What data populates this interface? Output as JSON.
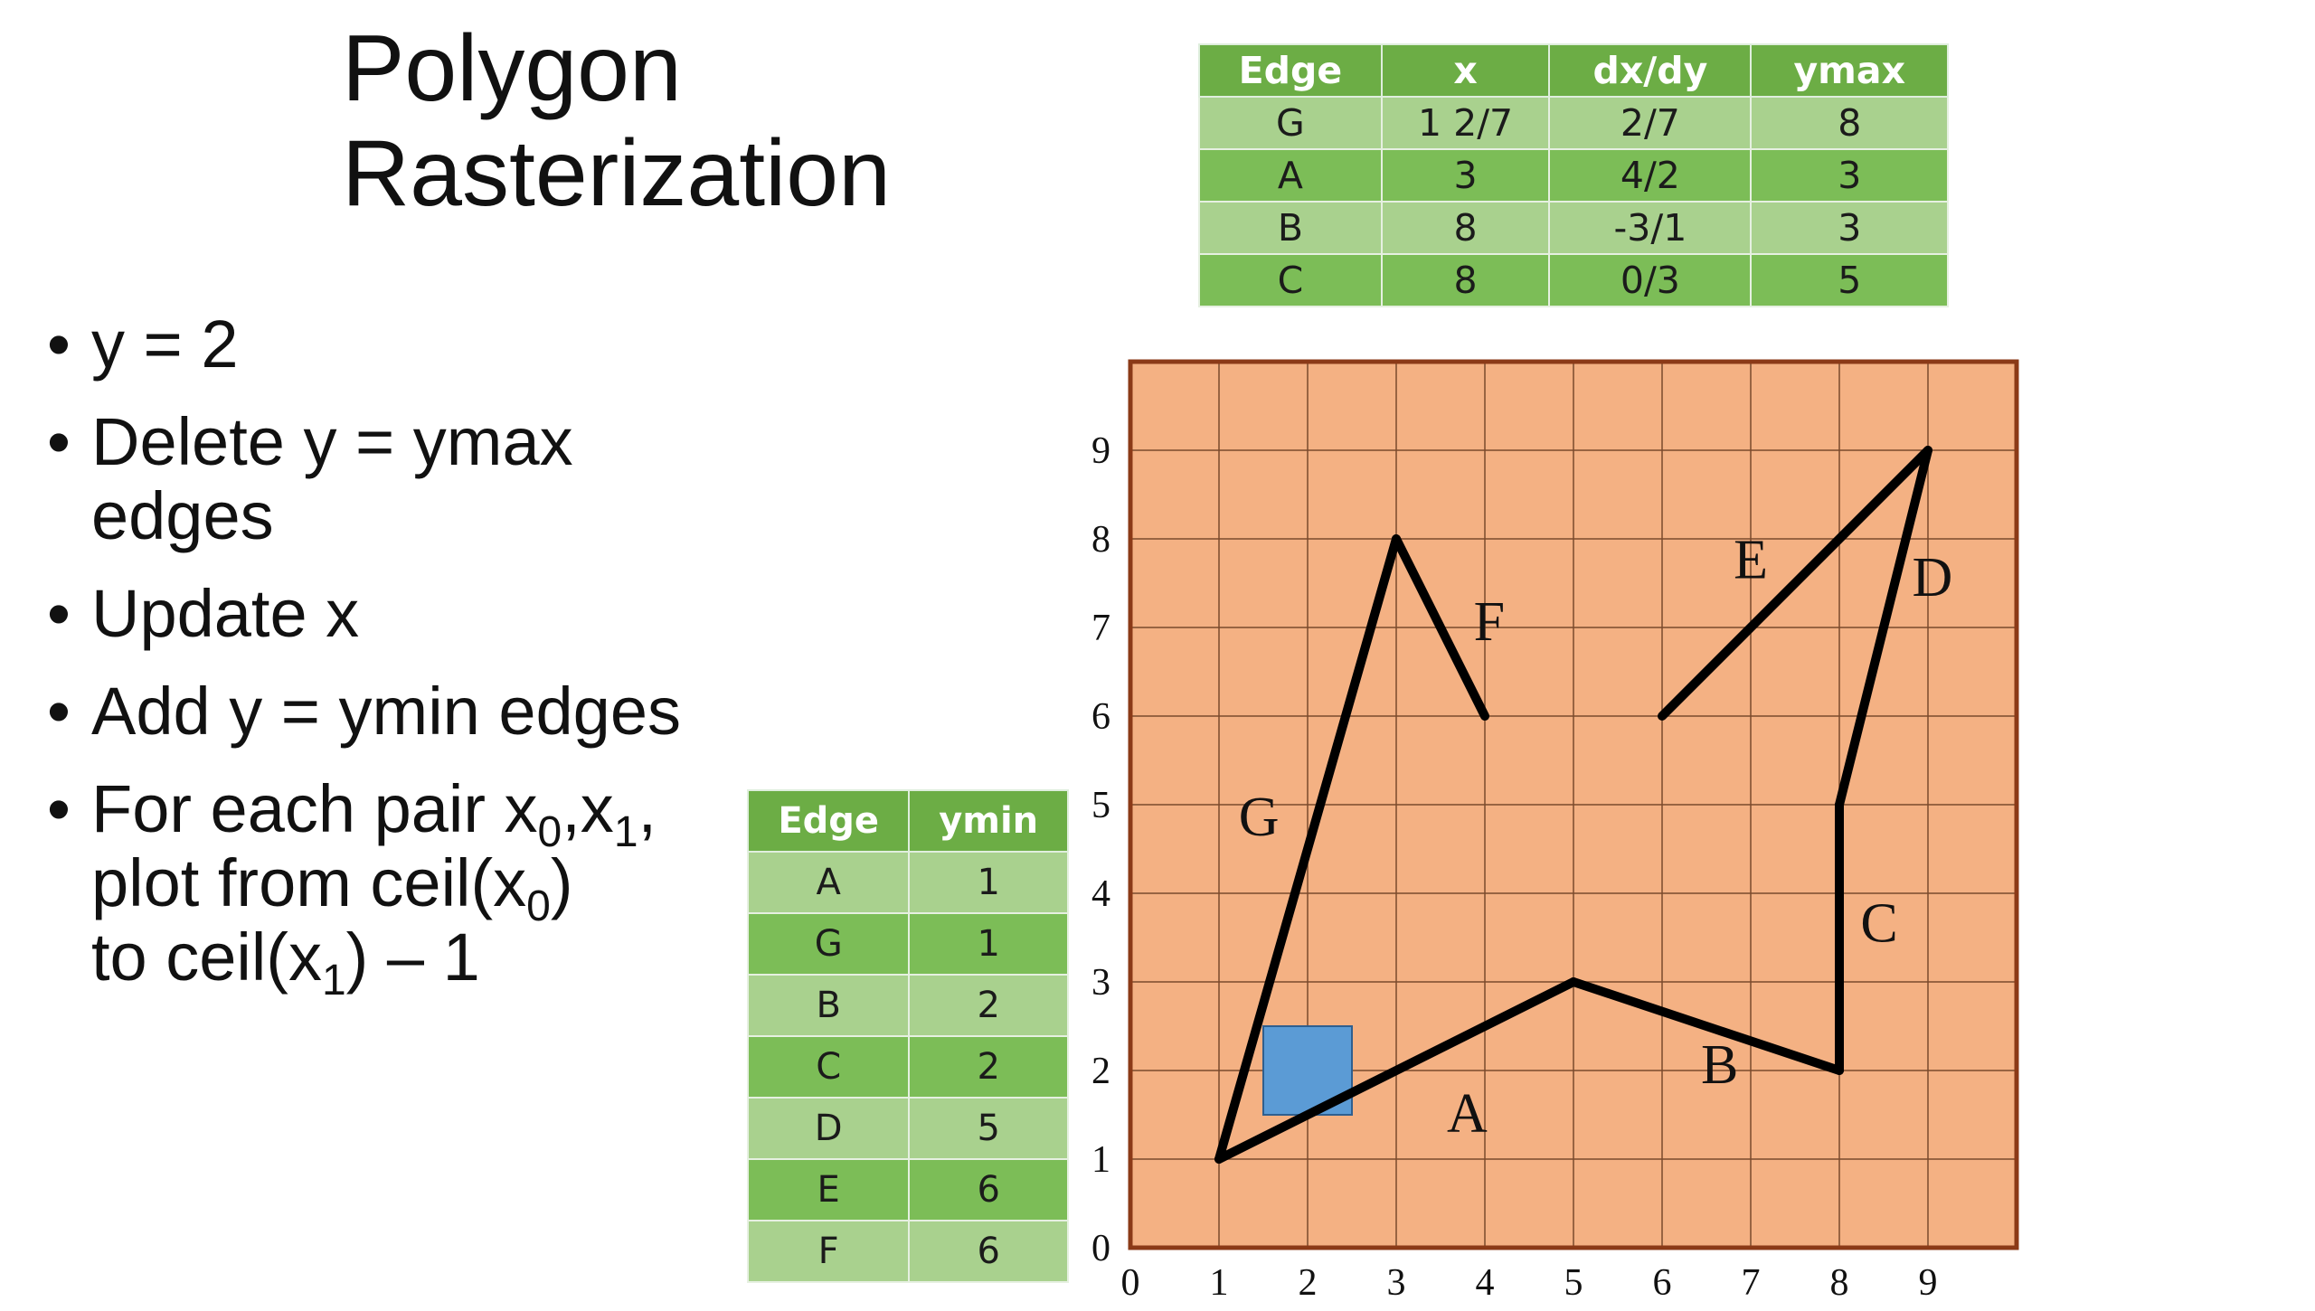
{
  "title": {
    "line1": "Polygon",
    "line2": "Rasterization"
  },
  "bullets": [
    {
      "text": "y = 2"
    },
    {
      "line1": "Delete y = ymax",
      "line2": "edges"
    },
    {
      "text": "Update x"
    },
    {
      "text": "Add y = ymin edges"
    },
    {
      "l1a": "For each pair x",
      "s1": "0",
      "l1b": ",x",
      "s2": "1",
      "l1c": ",",
      "l2a": "plot from ceil(x",
      "s3": "0",
      "l2b": ")",
      "l3a": "to ceil(x",
      "s4": "1",
      "l3b": ") – 1"
    }
  ],
  "edge_table": {
    "headers": [
      "Edge",
      "x",
      "dx/dy",
      "ymax"
    ],
    "rows": [
      [
        "G",
        "1 2/7",
        "2/7",
        "8"
      ],
      [
        "A",
        "3",
        "4/2",
        "3"
      ],
      [
        "B",
        "8",
        "-3/1",
        "3"
      ],
      [
        "C",
        "8",
        "0/3",
        "5"
      ]
    ]
  },
  "ymin_table": {
    "headers": [
      "Edge",
      "ymin"
    ],
    "rows": [
      [
        "A",
        "1"
      ],
      [
        "G",
        "1"
      ],
      [
        "B",
        "2"
      ],
      [
        "C",
        "2"
      ],
      [
        "D",
        "5"
      ],
      [
        "E",
        "6"
      ],
      [
        "F",
        "6"
      ]
    ]
  },
  "chart_data": {
    "type": "diagram",
    "x_ticks": [
      "0",
      "1",
      "2",
      "3",
      "4",
      "5",
      "6",
      "7",
      "8",
      "9"
    ],
    "y_ticks": [
      "0",
      "1",
      "2",
      "3",
      "4",
      "5",
      "6",
      "7",
      "8",
      "9"
    ],
    "xlim": [
      0,
      10
    ],
    "ylim": [
      0,
      10
    ],
    "grid": true,
    "edges": [
      {
        "name": "A",
        "points": [
          [
            1,
            1
          ],
          [
            5,
            3
          ]
        ]
      },
      {
        "name": "B",
        "points": [
          [
            5,
            3
          ],
          [
            8,
            2
          ]
        ]
      },
      {
        "name": "C",
        "points": [
          [
            8,
            2
          ],
          [
            8,
            5
          ]
        ]
      },
      {
        "name": "D",
        "points": [
          [
            8,
            5
          ],
          [
            9,
            9
          ]
        ]
      },
      {
        "name": "E",
        "points": [
          [
            9,
            9
          ],
          [
            6,
            6
          ]
        ]
      },
      {
        "name": "F",
        "points": [
          [
            4,
            6
          ],
          [
            3,
            8
          ]
        ]
      },
      {
        "name": "G",
        "points": [
          [
            3,
            8
          ],
          [
            1,
            1
          ]
        ]
      }
    ],
    "highlight_pixel": {
      "x": 1.5,
      "y": 1.5,
      "size": 1
    },
    "colors": {
      "background": "#f4b183",
      "grid": "#7a4a2c",
      "border": "#8b3a17",
      "edge": "#000000",
      "pixel": "#5b9bd5"
    }
  }
}
